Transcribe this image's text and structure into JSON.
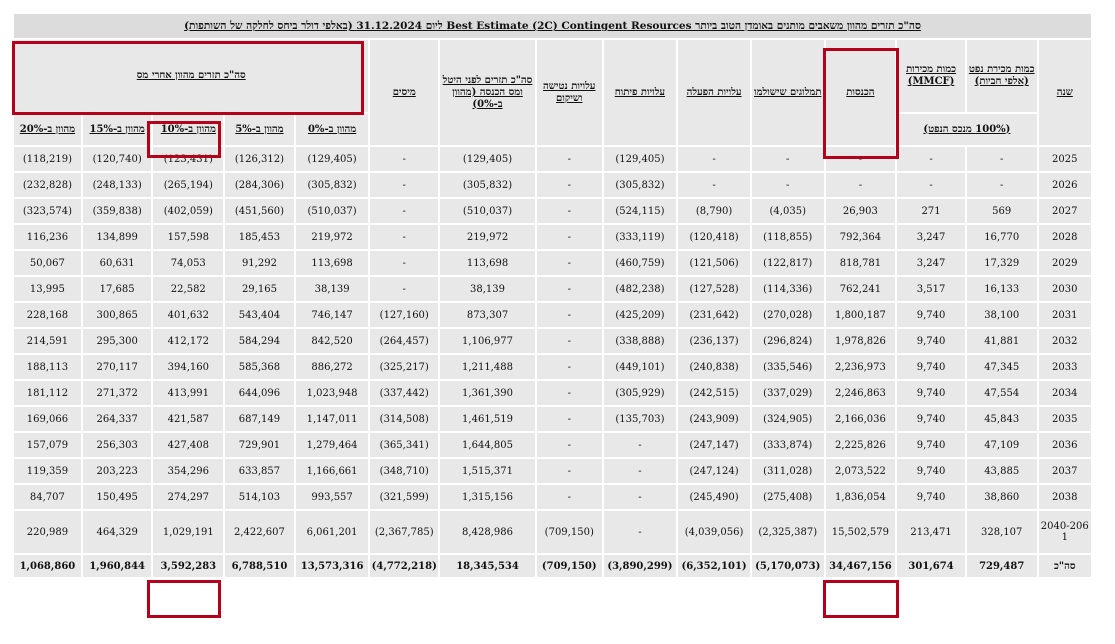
{
  "title": "סה\"כ תזרים מהוון משאבים מותנים באומדן הטוב ביותר Best Estimate (2C) Contingent Resources ליום 31.12.2024 (באלפי דולר ביחס לחלקה של השותפות)",
  "headers": {
    "year": "שנה",
    "oil_qty": "כמות מכירת נפט (אלפי חביות)",
    "gas_qty": "כמות מכירות (MMCF)",
    "qty_unit": "(100% מנכס הנפט)",
    "revenue": "הכנסות",
    "royalties": "תמלוגים שישולמו",
    "opex": "עלויות הפעלה",
    "devcost": "עלויות פיתוח",
    "abandon": "עלויות נטישה ושיקום",
    "pretax": "סה\"כ תזרים לפני היטל ומס הכנסה (מהוון ב-0%)",
    "taxes": "מיסים",
    "aftertax_group": "סה\"כ תזרים מהוון אחרי מס",
    "d0": "מהוון ב-0%",
    "d5": "מהוון ב-5%",
    "d10": "מהוון ב-10%",
    "d15": "מהוון ב-15%",
    "d20": "מהוון ב-20%"
  },
  "rows": [
    {
      "year": "2025",
      "oil": "-",
      "gas": "-",
      "revenue": "-",
      "royalties": "-",
      "opex": "-",
      "devcost": "(129,405)",
      "abandon": "-",
      "pretax": "(129,405)",
      "taxes": "-",
      "d0": "(129,405)",
      "d5": "(126,312)",
      "d10": "(123,431)",
      "d15": "(120,740)",
      "d20": "(118,219)"
    },
    {
      "year": "2026",
      "oil": "-",
      "gas": "-",
      "revenue": "-",
      "royalties": "-",
      "opex": "-",
      "devcost": "(305,832)",
      "abandon": "-",
      "pretax": "(305,832)",
      "taxes": "-",
      "d0": "(305,832)",
      "d5": "(284,306)",
      "d10": "(265,194)",
      "d15": "(248,133)",
      "d20": "(232,828)"
    },
    {
      "year": "2027",
      "oil": "569",
      "gas": "271",
      "revenue": "26,903",
      "royalties": "(4,035)",
      "opex": "(8,790)",
      "devcost": "(524,115)",
      "abandon": "-",
      "pretax": "(510,037)",
      "taxes": "-",
      "d0": "(510,037)",
      "d5": "(451,560)",
      "d10": "(402,059)",
      "d15": "(359,838)",
      "d20": "(323,574)"
    },
    {
      "year": "2028",
      "oil": "16,770",
      "gas": "3,247",
      "revenue": "792,364",
      "royalties": "(118,855)",
      "opex": "(120,418)",
      "devcost": "(333,119)",
      "abandon": "-",
      "pretax": "219,972",
      "taxes": "-",
      "d0": "219,972",
      "d5": "185,453",
      "d10": "157,598",
      "d15": "134,899",
      "d20": "116,236"
    },
    {
      "year": "2029",
      "oil": "17,329",
      "gas": "3,247",
      "revenue": "818,781",
      "royalties": "(122,817)",
      "opex": "(121,506)",
      "devcost": "(460,759)",
      "abandon": "-",
      "pretax": "113,698",
      "taxes": "-",
      "d0": "113,698",
      "d5": "91,292",
      "d10": "74,053",
      "d15": "60,631",
      "d20": "50,067"
    },
    {
      "year": "2030",
      "oil": "16,133",
      "gas": "3,517",
      "revenue": "762,241",
      "royalties": "(114,336)",
      "opex": "(127,528)",
      "devcost": "(482,238)",
      "abandon": "-",
      "pretax": "38,139",
      "taxes": "-",
      "d0": "38,139",
      "d5": "29,165",
      "d10": "22,582",
      "d15": "17,685",
      "d20": "13,995"
    },
    {
      "year": "2031",
      "oil": "38,100",
      "gas": "9,740",
      "revenue": "1,800,187",
      "royalties": "(270,028)",
      "opex": "(231,642)",
      "devcost": "(425,209)",
      "abandon": "-",
      "pretax": "873,307",
      "taxes": "(127,160)",
      "d0": "746,147",
      "d5": "543,404",
      "d10": "401,632",
      "d15": "300,865",
      "d20": "228,168"
    },
    {
      "year": "2032",
      "oil": "41,881",
      "gas": "9,740",
      "revenue": "1,978,826",
      "royalties": "(296,824)",
      "opex": "(236,137)",
      "devcost": "(338,888)",
      "abandon": "-",
      "pretax": "1,106,977",
      "taxes": "(264,457)",
      "d0": "842,520",
      "d5": "584,294",
      "d10": "412,172",
      "d15": "295,300",
      "d20": "214,591"
    },
    {
      "year": "2033",
      "oil": "47,345",
      "gas": "9,740",
      "revenue": "2,236,973",
      "royalties": "(335,546)",
      "opex": "(240,838)",
      "devcost": "(449,101)",
      "abandon": "-",
      "pretax": "1,211,488",
      "taxes": "(325,217)",
      "d0": "886,272",
      "d5": "585,368",
      "d10": "394,160",
      "d15": "270,117",
      "d20": "188,113"
    },
    {
      "year": "2034",
      "oil": "47,554",
      "gas": "9,740",
      "revenue": "2,246,863",
      "royalties": "(337,029)",
      "opex": "(242,515)",
      "devcost": "(305,929)",
      "abandon": "-",
      "pretax": "1,361,390",
      "taxes": "(337,442)",
      "d0": "1,023,948",
      "d5": "644,096",
      "d10": "413,991",
      "d15": "271,372",
      "d20": "181,112"
    },
    {
      "year": "2035",
      "oil": "45,843",
      "gas": "9,740",
      "revenue": "2,166,036",
      "royalties": "(324,905)",
      "opex": "(243,909)",
      "devcost": "(135,703)",
      "abandon": "-",
      "pretax": "1,461,519",
      "taxes": "(314,508)",
      "d0": "1,147,011",
      "d5": "687,149",
      "d10": "421,587",
      "d15": "264,337",
      "d20": "169,066"
    },
    {
      "year": "2036",
      "oil": "47,109",
      "gas": "9,740",
      "revenue": "2,225,826",
      "royalties": "(333,874)",
      "opex": "(247,147)",
      "devcost": "-",
      "abandon": "-",
      "pretax": "1,644,805",
      "taxes": "(365,341)",
      "d0": "1,279,464",
      "d5": "729,901",
      "d10": "427,408",
      "d15": "256,303",
      "d20": "157,079"
    },
    {
      "year": "2037",
      "oil": "43,885",
      "gas": "9,740",
      "revenue": "2,073,522",
      "royalties": "(311,028)",
      "opex": "(247,124)",
      "devcost": "-",
      "abandon": "-",
      "pretax": "1,515,371",
      "taxes": "(348,710)",
      "d0": "1,166,661",
      "d5": "633,857",
      "d10": "354,296",
      "d15": "203,223",
      "d20": "119,359"
    },
    {
      "year": "2038",
      "oil": "38,860",
      "gas": "9,740",
      "revenue": "1,836,054",
      "royalties": "(275,408)",
      "opex": "(245,490)",
      "devcost": "-",
      "abandon": "-",
      "pretax": "1,315,156",
      "taxes": "(321,599)",
      "d0": "993,557",
      "d5": "514,103",
      "d10": "274,297",
      "d15": "150,495",
      "d20": "84,707"
    },
    {
      "year": "2040-2061",
      "oil": "328,107",
      "gas": "213,471",
      "revenue": "15,502,579",
      "royalties": "(2,325,387)",
      "opex": "(4,039,056)",
      "devcost": "-",
      "abandon": "(709,150)",
      "pretax": "8,428,986",
      "taxes": "(2,367,785)",
      "d0": "6,061,201",
      "d5": "2,422,607",
      "d10": "1,029,191",
      "d15": "464,329",
      "d20": "220,989"
    }
  ],
  "total": {
    "year": "סה\"כ",
    "oil": "729,487",
    "gas": "301,674",
    "revenue": "34,467,156",
    "royalties": "(5,170,073)",
    "opex": "(6,352,101)",
    "devcost": "(3,890,299)",
    "abandon": "(709,150)",
    "pretax": "18,345,534",
    "taxes": "(4,772,218)",
    "d0": "13,573,316",
    "d5": "6,788,510",
    "d10": "3,592,283",
    "d15": "1,960,844",
    "d20": "1,068,860"
  },
  "highlight_color": "#b3001b"
}
